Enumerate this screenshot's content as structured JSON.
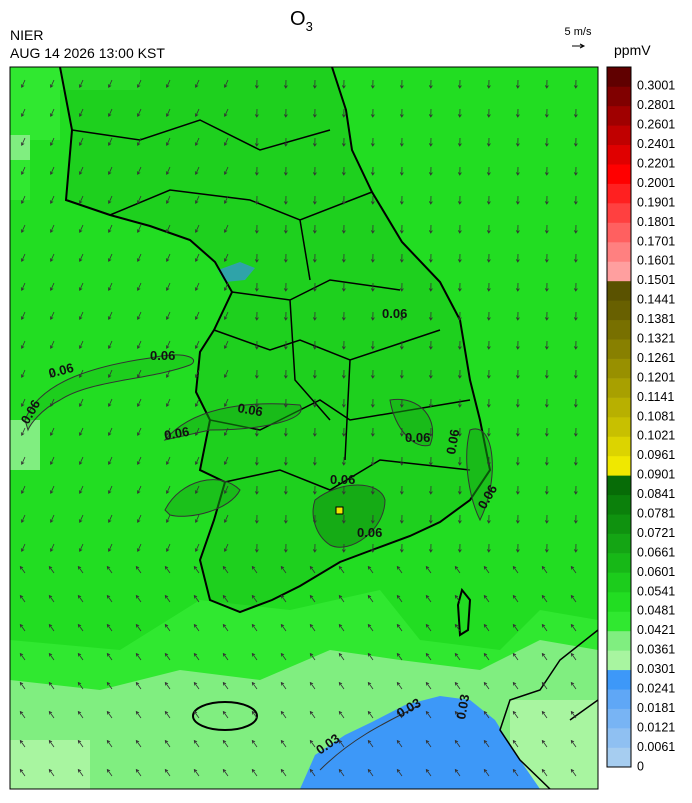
{
  "header": {
    "title": "O",
    "title_subscript": "3",
    "agency": "NIER",
    "timestamp": "AUG 14 2026 13:00 KST",
    "wind_scale": "5 m/s"
  },
  "colorbar": {
    "unit": "ppmV",
    "labels": [
      "0",
      "0.0061",
      "0.0121",
      "0.0181",
      "0.0241",
      "0.0301",
      "0.0361",
      "0.0421",
      "0.0481",
      "0.0541",
      "0.0601",
      "0.0661",
      "0.0721",
      "0.0781",
      "0.0841",
      "0.0901",
      "0.0961",
      "0.1021",
      "0.1081",
      "0.1141",
      "0.1201",
      "0.1261",
      "0.1321",
      "0.1381",
      "0.1441",
      "0.1501",
      "0.1601",
      "0.1701",
      "0.1801",
      "0.1901",
      "0.2001",
      "0.2201",
      "0.2401",
      "0.2601",
      "0.2801",
      "0.3001"
    ],
    "colors": [
      "#a6cdf0",
      "#8fc0f2",
      "#78b4f4",
      "#5fa7f6",
      "#3d98f8",
      "#a8f5a0",
      "#80ee80",
      "#30e830",
      "#22dd22",
      "#1ccc1c",
      "#17b817",
      "#14a514",
      "#0f920f",
      "#0b800b",
      "#076c07",
      "#f0e800",
      "#dcd400",
      "#c8c000",
      "#b8b000",
      "#a8a000",
      "#989000",
      "#888000",
      "#787000",
      "#686000",
      "#5a5200",
      "#ff9f9f",
      "#ff8080",
      "#ff6060",
      "#ff4040",
      "#ff2020",
      "#ff0000",
      "#e00000",
      "#c00000",
      "#a00000",
      "#800000",
      "#600000"
    ]
  },
  "map": {
    "contour_labels": [
      "0.06",
      "0.06",
      "0.06",
      "0.06",
      "0.06",
      "0.06",
      "0.06",
      "0.06",
      "0.06",
      "0.06",
      "0.06",
      "0.03",
      "0.03",
      "0.03"
    ]
  }
}
